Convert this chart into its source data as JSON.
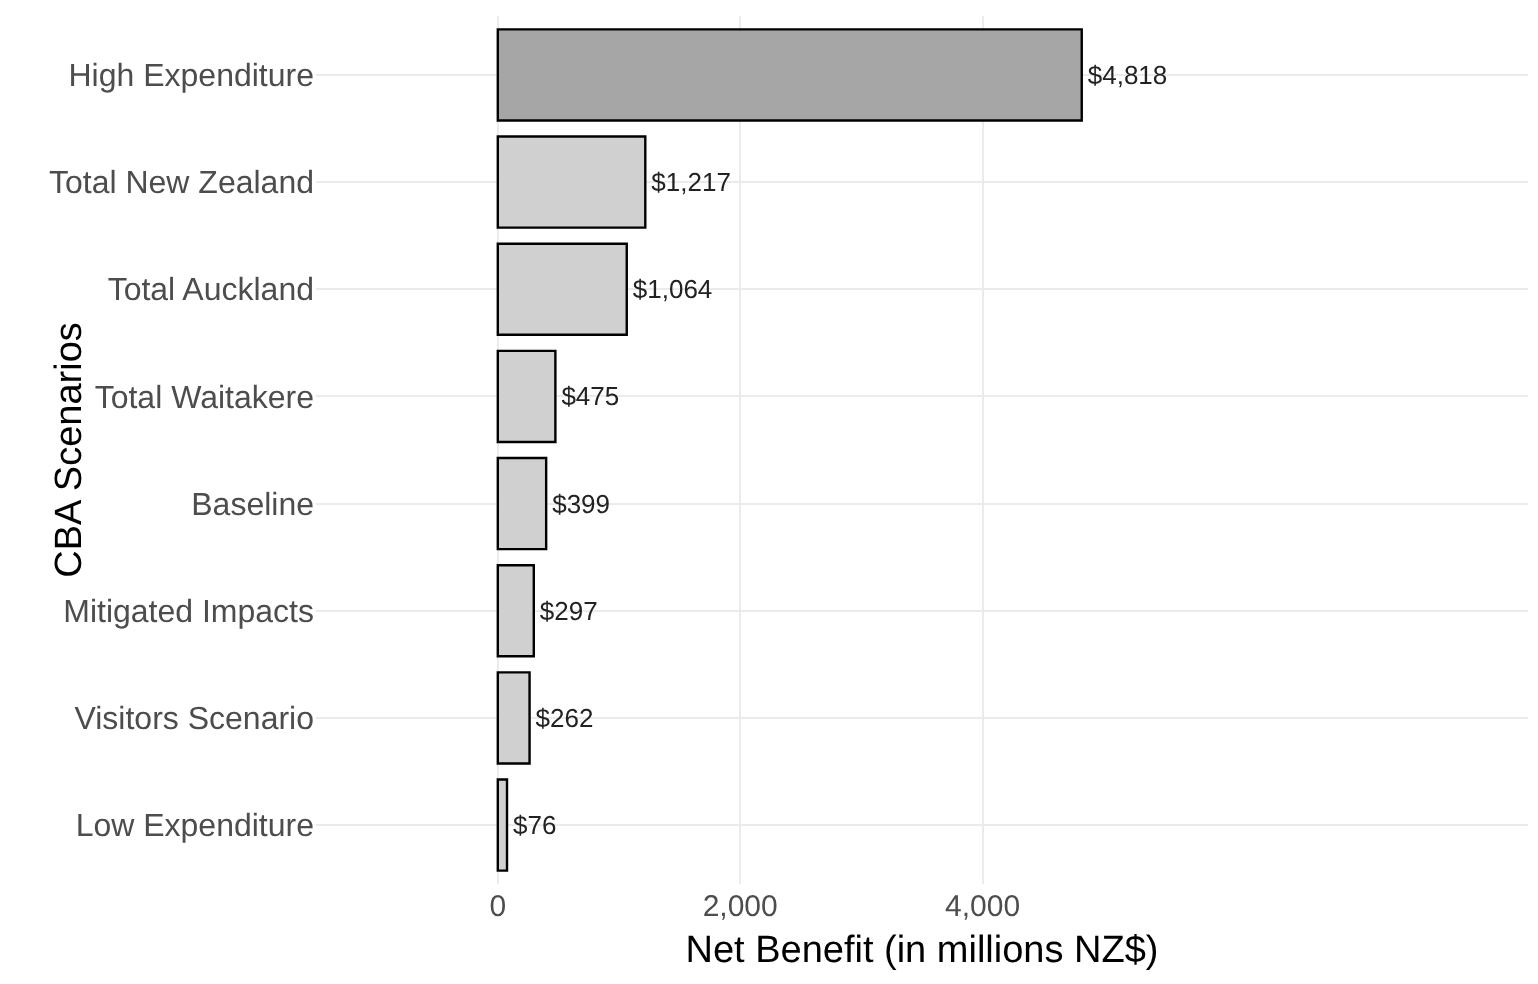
{
  "chart_data": {
    "type": "bar",
    "orientation": "horizontal",
    "xlabel": "Net Benefit (in millions NZ$)",
    "ylabel": "CBA Scenarios",
    "categories": [
      "High Expenditure",
      "Total New Zealand",
      "Total Auckland",
      "Total Waitakere",
      "Baseline",
      "Mitigated Impacts",
      "Visitors Scenario",
      "Low Expenditure"
    ],
    "values": [
      4818,
      1217,
      1064,
      475,
      399,
      297,
      262,
      76
    ],
    "value_labels": [
      "$4,818",
      "$1,217",
      "$1,064",
      "$475",
      "$399",
      "$297",
      "$262",
      "$76"
    ],
    "colors": [
      "#a6a6a6",
      "#d0d0d0",
      "#d0d0d0",
      "#d0d0d0",
      "#d0d0d0",
      "#d0d0d0",
      "#d0d0d0",
      "#d0d0d0"
    ],
    "xlim": [
      -1500,
      8500
    ],
    "xticks": [
      0,
      {
        "value": 2000,
        "label": "2,000"
      },
      {
        "value": 4000,
        "label": "4,000"
      }
    ],
    "grid": true,
    "legend": false
  }
}
